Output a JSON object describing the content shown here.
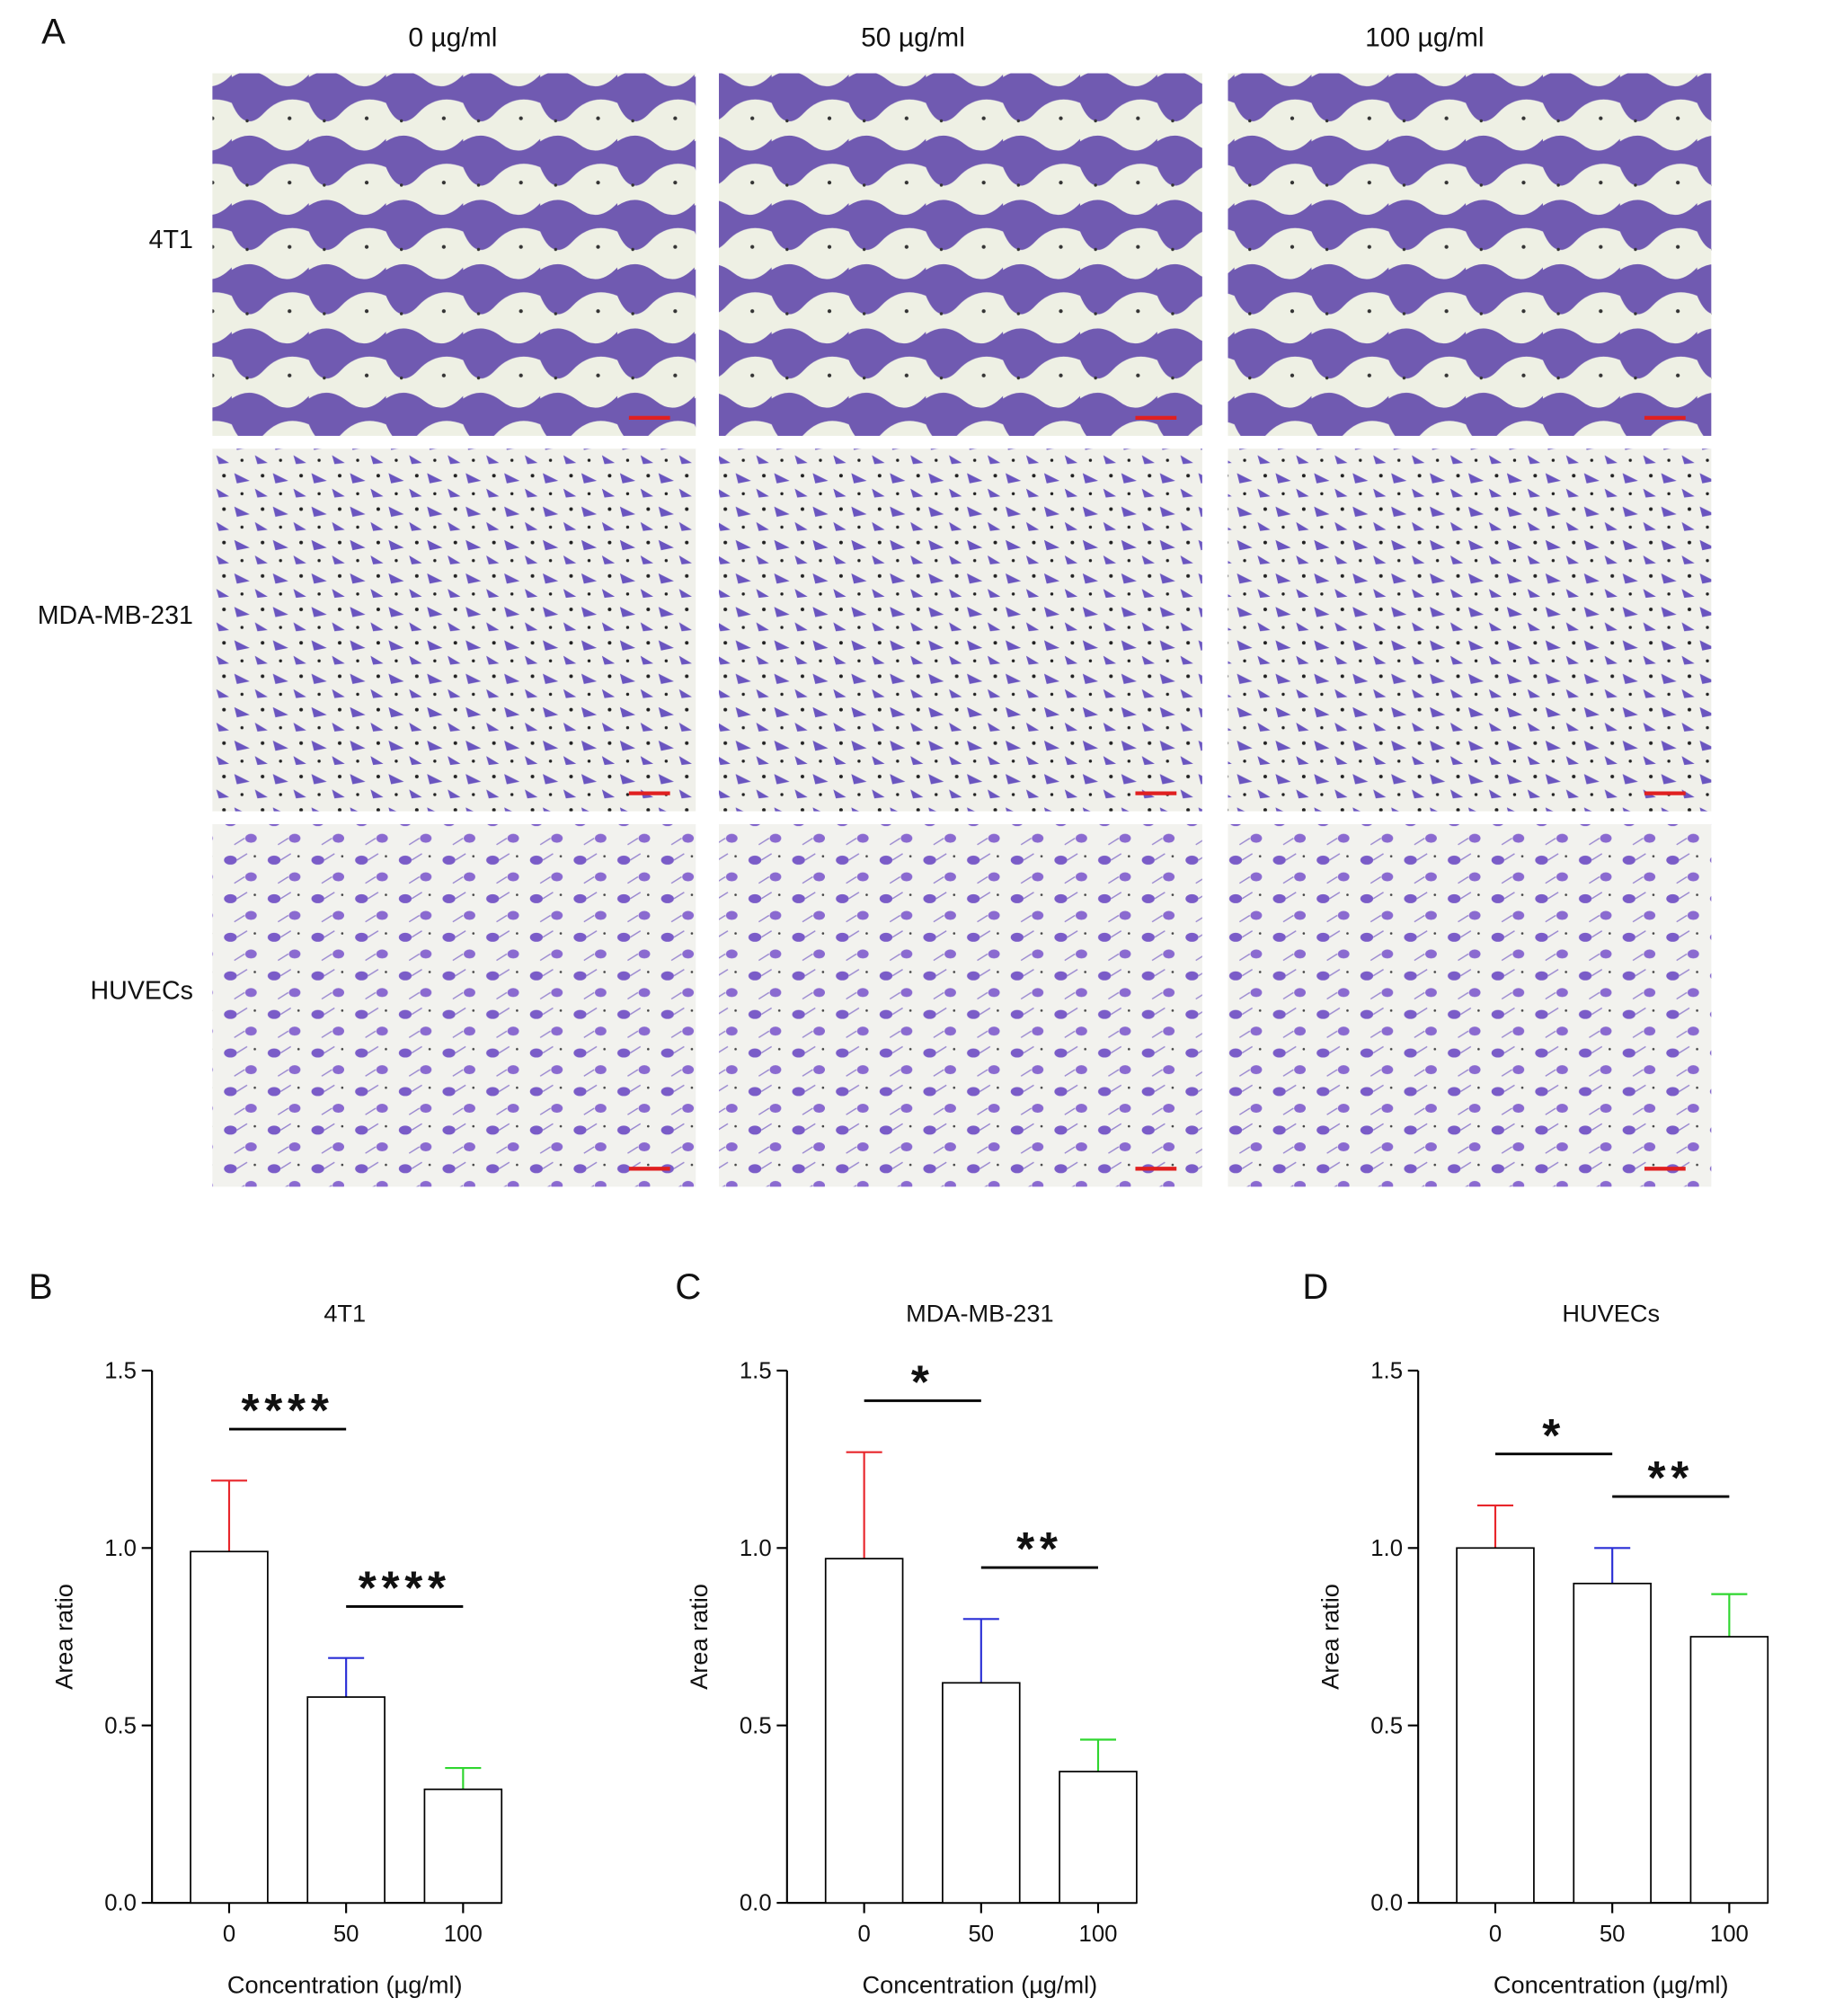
{
  "figure": {
    "panel_label": "A",
    "columns": [
      "0 µg/ml",
      "50 µg/ml",
      "100 µg/ml"
    ],
    "rows": [
      "4T1",
      "MDA-MB-231",
      "HUVECs"
    ]
  },
  "chart_data": [
    {
      "type": "bar",
      "panel": "B",
      "title": "4T1",
      "xlabel": "Concentration (µg/ml)",
      "ylabel": "Area ratio",
      "categories": [
        "0",
        "50",
        "100"
      ],
      "values": [
        0.99,
        0.58,
        0.32
      ],
      "errors": [
        0.2,
        0.11,
        0.06
      ],
      "error_colors": [
        "#e8262b",
        "#2a2fd6",
        "#2fd62f"
      ],
      "color": "#ffffff",
      "ylim": [
        0,
        1.5
      ],
      "yticks": [
        {
          "value": 0,
          "label": "0.0"
        },
        {
          "value": 0.5,
          "label": "0.5"
        },
        {
          "value": 1,
          "label": "1.0"
        },
        {
          "value": 1.5,
          "label": "1.5"
        }
      ],
      "significance": [
        {
          "from": 0,
          "to": 1,
          "label": "****"
        },
        {
          "from": 1,
          "to": 2,
          "label": "****"
        }
      ]
    },
    {
      "type": "bar",
      "panel": "C",
      "title": "MDA-MB-231",
      "xlabel": "Concentration (µg/ml)",
      "ylabel": "Area ratio",
      "categories": [
        "0",
        "50",
        "100"
      ],
      "values": [
        0.97,
        0.62,
        0.37
      ],
      "errors": [
        0.3,
        0.18,
        0.09
      ],
      "error_colors": [
        "#e8262b",
        "#2a2fd6",
        "#2fd62f"
      ],
      "color": "#ffffff",
      "ylim": [
        0,
        1.5
      ],
      "yticks": [
        {
          "value": 0,
          "label": "0.0"
        },
        {
          "value": 0.5,
          "label": "0.5"
        },
        {
          "value": 1,
          "label": "1.0"
        },
        {
          "value": 1.5,
          "label": "1.5"
        }
      ],
      "significance": [
        {
          "from": 0,
          "to": 1,
          "label": "*"
        },
        {
          "from": 1,
          "to": 2,
          "label": "**"
        }
      ]
    },
    {
      "type": "bar",
      "panel": "D",
      "title": "HUVECs",
      "xlabel": "Concentration (µg/ml)",
      "ylabel": "Area ratio",
      "categories": [
        "0",
        "50",
        "100"
      ],
      "values": [
        1.0,
        0.9,
        0.75
      ],
      "errors": [
        0.12,
        0.1,
        0.12
      ],
      "error_colors": [
        "#e8262b",
        "#2a2fd6",
        "#2fd62f"
      ],
      "color": "#ffffff",
      "ylim": [
        0,
        1.5
      ],
      "yticks": [
        {
          "value": 0,
          "label": "0.0"
        },
        {
          "value": 0.5,
          "label": "0.5"
        },
        {
          "value": 1,
          "label": "1.0"
        },
        {
          "value": 1.5,
          "label": "1.5"
        }
      ],
      "significance": [
        {
          "from": 0,
          "to": 1,
          "label": "*"
        },
        {
          "from": 1,
          "to": 2,
          "label": "**"
        }
      ]
    }
  ]
}
